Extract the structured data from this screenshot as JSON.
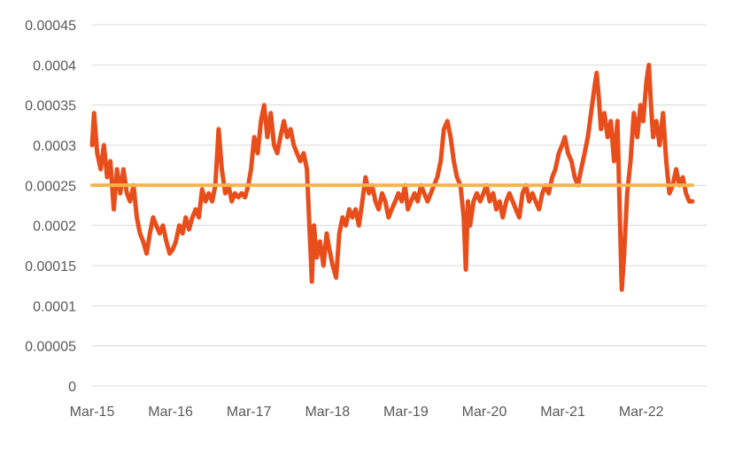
{
  "chart_data": {
    "type": "line",
    "title": "",
    "xlabel": "",
    "ylabel": "",
    "ylim": [
      0,
      0.00045
    ],
    "y_ticks": [
      "0",
      "0.00005",
      "0.0001",
      "0.00015",
      "0.0002",
      "0.00025",
      "0.0003",
      "0.00035",
      "0.0004",
      "0.00045"
    ],
    "x_ticks": [
      "Mar-15",
      "Mar-16",
      "Mar-17",
      "Mar-18",
      "Mar-19",
      "Mar-20",
      "Mar-21",
      "Mar-22"
    ],
    "grid": "horizontal",
    "legend": "none",
    "series": [
      {
        "color": "#E84E1B",
        "points": [
          [
            "2015-03-01",
            0.0003
          ],
          [
            "2015-03-10",
            0.00034
          ],
          [
            "2015-03-25",
            0.00029
          ],
          [
            "2015-04-10",
            0.00027
          ],
          [
            "2015-04-25",
            0.0003
          ],
          [
            "2015-05-10",
            0.00026
          ],
          [
            "2015-05-25",
            0.00028
          ],
          [
            "2015-06-10",
            0.00022
          ],
          [
            "2015-06-25",
            0.00027
          ],
          [
            "2015-07-10",
            0.00024
          ],
          [
            "2015-07-25",
            0.00027
          ],
          [
            "2015-08-10",
            0.00024
          ],
          [
            "2015-08-25",
            0.00023
          ],
          [
            "2015-09-10",
            0.00025
          ],
          [
            "2015-09-25",
            0.00021
          ],
          [
            "2015-10-10",
            0.00019
          ],
          [
            "2015-10-25",
            0.00018
          ],
          [
            "2015-11-10",
            0.000165
          ],
          [
            "2015-11-25",
            0.00019
          ],
          [
            "2015-12-10",
            0.00021
          ],
          [
            "2015-12-25",
            0.0002
          ],
          [
            "2016-01-10",
            0.00019
          ],
          [
            "2016-01-25",
            0.0002
          ],
          [
            "2016-02-10",
            0.00018
          ],
          [
            "2016-02-25",
            0.000165
          ],
          [
            "2016-03-10",
            0.00017
          ],
          [
            "2016-03-25",
            0.00018
          ],
          [
            "2016-04-10",
            0.0002
          ],
          [
            "2016-04-25",
            0.00019
          ],
          [
            "2016-05-10",
            0.00021
          ],
          [
            "2016-05-25",
            0.000195
          ],
          [
            "2016-06-10",
            0.00021
          ],
          [
            "2016-06-25",
            0.00022
          ],
          [
            "2016-07-10",
            0.00021
          ],
          [
            "2016-07-25",
            0.000245
          ],
          [
            "2016-08-10",
            0.00023
          ],
          [
            "2016-08-25",
            0.00024
          ],
          [
            "2016-09-10",
            0.00023
          ],
          [
            "2016-09-25",
            0.00025
          ],
          [
            "2016-10-10",
            0.00032
          ],
          [
            "2016-10-25",
            0.00027
          ],
          [
            "2016-11-10",
            0.00024
          ],
          [
            "2016-11-25",
            0.00025
          ],
          [
            "2016-12-10",
            0.00023
          ],
          [
            "2016-12-25",
            0.00024
          ],
          [
            "2017-01-10",
            0.000235
          ],
          [
            "2017-01-25",
            0.00024
          ],
          [
            "2017-02-10",
            0.000235
          ],
          [
            "2017-02-25",
            0.00025
          ],
          [
            "2017-03-10",
            0.00027
          ],
          [
            "2017-03-25",
            0.00031
          ],
          [
            "2017-04-10",
            0.00029
          ],
          [
            "2017-04-25",
            0.00033
          ],
          [
            "2017-05-10",
            0.00035
          ],
          [
            "2017-05-25",
            0.00031
          ],
          [
            "2017-06-10",
            0.00034
          ],
          [
            "2017-06-25",
            0.0003
          ],
          [
            "2017-07-10",
            0.00029
          ],
          [
            "2017-07-25",
            0.00031
          ],
          [
            "2017-08-10",
            0.00033
          ],
          [
            "2017-08-25",
            0.00031
          ],
          [
            "2017-09-10",
            0.00032
          ],
          [
            "2017-09-25",
            0.0003
          ],
          [
            "2017-10-10",
            0.00029
          ],
          [
            "2017-10-25",
            0.00028
          ],
          [
            "2017-11-10",
            0.00029
          ],
          [
            "2017-11-25",
            0.00027
          ],
          [
            "2017-12-10",
            0.00018
          ],
          [
            "2017-12-18",
            0.00013
          ],
          [
            "2017-12-28",
            0.0002
          ],
          [
            "2018-01-10",
            0.00016
          ],
          [
            "2018-01-25",
            0.00018
          ],
          [
            "2018-02-10",
            0.00015
          ],
          [
            "2018-02-25",
            0.00019
          ],
          [
            "2018-03-10",
            0.00017
          ],
          [
            "2018-03-25",
            0.00015
          ],
          [
            "2018-04-10",
            0.000135
          ],
          [
            "2018-04-25",
            0.00019
          ],
          [
            "2018-05-10",
            0.00021
          ],
          [
            "2018-05-25",
            0.0002
          ],
          [
            "2018-06-10",
            0.00022
          ],
          [
            "2018-06-25",
            0.00021
          ],
          [
            "2018-07-10",
            0.00022
          ],
          [
            "2018-07-25",
            0.0002
          ],
          [
            "2018-08-10",
            0.00023
          ],
          [
            "2018-08-25",
            0.00026
          ],
          [
            "2018-09-10",
            0.00024
          ],
          [
            "2018-09-25",
            0.00025
          ],
          [
            "2018-10-10",
            0.00023
          ],
          [
            "2018-10-25",
            0.00022
          ],
          [
            "2018-11-10",
            0.00024
          ],
          [
            "2018-11-25",
            0.00023
          ],
          [
            "2018-12-10",
            0.00021
          ],
          [
            "2018-12-25",
            0.00022
          ],
          [
            "2019-01-10",
            0.00023
          ],
          [
            "2019-01-25",
            0.00024
          ],
          [
            "2019-02-10",
            0.00023
          ],
          [
            "2019-02-25",
            0.00025
          ],
          [
            "2019-03-10",
            0.00022
          ],
          [
            "2019-03-25",
            0.00023
          ],
          [
            "2019-04-10",
            0.00024
          ],
          [
            "2019-04-25",
            0.00023
          ],
          [
            "2019-05-10",
            0.00025
          ],
          [
            "2019-05-25",
            0.00024
          ],
          [
            "2019-06-10",
            0.00023
          ],
          [
            "2019-06-25",
            0.00024
          ],
          [
            "2019-07-10",
            0.00025
          ],
          [
            "2019-07-25",
            0.00026
          ],
          [
            "2019-08-10",
            0.00028
          ],
          [
            "2019-08-25",
            0.00032
          ],
          [
            "2019-09-10",
            0.00033
          ],
          [
            "2019-09-25",
            0.00031
          ],
          [
            "2019-10-10",
            0.00028
          ],
          [
            "2019-10-25",
            0.00026
          ],
          [
            "2019-11-10",
            0.00025
          ],
          [
            "2019-11-25",
            0.00021
          ],
          [
            "2019-12-05",
            0.000145
          ],
          [
            "2019-12-15",
            0.00023
          ],
          [
            "2019-12-25",
            0.0002
          ],
          [
            "2020-01-10",
            0.00023
          ],
          [
            "2020-01-25",
            0.00024
          ],
          [
            "2020-02-10",
            0.00023
          ],
          [
            "2020-02-25",
            0.00024
          ],
          [
            "2020-03-10",
            0.00025
          ],
          [
            "2020-03-25",
            0.00023
          ],
          [
            "2020-04-10",
            0.00024
          ],
          [
            "2020-04-25",
            0.00022
          ],
          [
            "2020-05-10",
            0.00023
          ],
          [
            "2020-05-25",
            0.00021
          ],
          [
            "2020-06-10",
            0.00023
          ],
          [
            "2020-06-25",
            0.00024
          ],
          [
            "2020-07-10",
            0.00023
          ],
          [
            "2020-07-25",
            0.00022
          ],
          [
            "2020-08-10",
            0.00021
          ],
          [
            "2020-08-25",
            0.00024
          ],
          [
            "2020-09-10",
            0.00025
          ],
          [
            "2020-09-25",
            0.00023
          ],
          [
            "2020-10-10",
            0.00024
          ],
          [
            "2020-10-25",
            0.00023
          ],
          [
            "2020-11-10",
            0.00022
          ],
          [
            "2020-11-25",
            0.00024
          ],
          [
            "2020-12-10",
            0.00025
          ],
          [
            "2020-12-25",
            0.00024
          ],
          [
            "2021-01-10",
            0.00026
          ],
          [
            "2021-01-25",
            0.00027
          ],
          [
            "2021-02-10",
            0.00029
          ],
          [
            "2021-02-25",
            0.0003
          ],
          [
            "2021-03-10",
            0.00031
          ],
          [
            "2021-03-25",
            0.00029
          ],
          [
            "2021-04-10",
            0.00028
          ],
          [
            "2021-04-25",
            0.00026
          ],
          [
            "2021-05-10",
            0.00025
          ],
          [
            "2021-05-25",
            0.00027
          ],
          [
            "2021-06-10",
            0.00029
          ],
          [
            "2021-06-25",
            0.00031
          ],
          [
            "2021-07-10",
            0.00034
          ],
          [
            "2021-07-25",
            0.00037
          ],
          [
            "2021-08-05",
            0.00039
          ],
          [
            "2021-08-15",
            0.00036
          ],
          [
            "2021-08-25",
            0.00032
          ],
          [
            "2021-09-10",
            0.00034
          ],
          [
            "2021-09-25",
            0.00031
          ],
          [
            "2021-10-10",
            0.00033
          ],
          [
            "2021-10-25",
            0.00028
          ],
          [
            "2021-11-10",
            0.00033
          ],
          [
            "2021-11-20",
            0.00022
          ],
          [
            "2021-11-30",
            0.00012
          ],
          [
            "2021-12-10",
            0.00016
          ],
          [
            "2021-12-25",
            0.00024
          ],
          [
            "2022-01-10",
            0.00028
          ],
          [
            "2022-01-25",
            0.00034
          ],
          [
            "2022-02-10",
            0.00031
          ],
          [
            "2022-02-25",
            0.00035
          ],
          [
            "2022-03-10",
            0.00033
          ],
          [
            "2022-03-25",
            0.00038
          ],
          [
            "2022-04-05",
            0.0004
          ],
          [
            "2022-04-15",
            0.00035
          ],
          [
            "2022-04-25",
            0.00031
          ],
          [
            "2022-05-10",
            0.00033
          ],
          [
            "2022-05-25",
            0.0003
          ],
          [
            "2022-06-10",
            0.00034
          ],
          [
            "2022-06-25",
            0.00028
          ],
          [
            "2022-07-10",
            0.00024
          ],
          [
            "2022-07-25",
            0.00025
          ],
          [
            "2022-08-10",
            0.00027
          ],
          [
            "2022-08-25",
            0.00025
          ],
          [
            "2022-09-10",
            0.00026
          ],
          [
            "2022-09-25",
            0.00024
          ],
          [
            "2022-10-10",
            0.00023
          ],
          [
            "2022-10-25",
            0.00023
          ]
        ]
      },
      {
        "color": "#F5B44A",
        "points": [
          [
            "2015-03-01",
            0.00025
          ],
          [
            "2022-10-25",
            0.00025
          ]
        ]
      }
    ]
  }
}
